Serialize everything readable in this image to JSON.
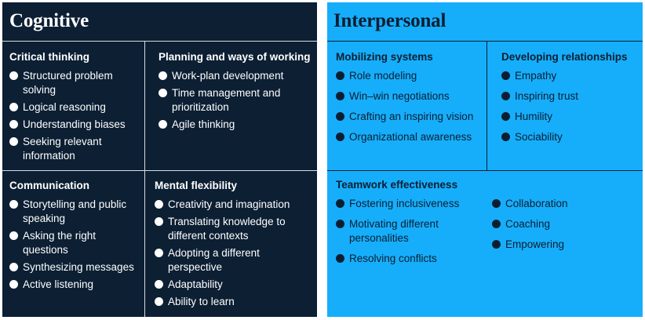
{
  "cognitive": {
    "title": "Cognitive",
    "critical_thinking": {
      "heading": "Critical thinking",
      "items": [
        "Structured problem solving",
        "Logical reasoning",
        "Understanding biases",
        "Seeking relevant information"
      ]
    },
    "planning": {
      "heading": "Planning and ways of working",
      "items": [
        "Work-plan development",
        "Time management and prioritization",
        "Agile thinking"
      ]
    },
    "communication": {
      "heading": "Communication",
      "items": [
        "Storytelling and public speaking",
        "Asking the right questions",
        "Synthesizing messages",
        "Active listening"
      ]
    },
    "mental_flexibility": {
      "heading": "Mental flexibility",
      "items": [
        "Creativity and imagination",
        "Translating knowledge to different contexts",
        "Adopting a different perspective",
        "Adaptability",
        "Ability to learn"
      ]
    }
  },
  "interpersonal": {
    "title": "Interpersonal",
    "mobilizing": {
      "heading": "Mobilizing systems",
      "items": [
        "Role modeling",
        "Win–win negotiations",
        "Crafting an inspiring vision",
        "Organizational awareness"
      ]
    },
    "relationships": {
      "heading": "Developing relationships",
      "items": [
        "Empathy",
        "Inspiring trust",
        "Humility",
        "Sociability"
      ]
    },
    "teamwork": {
      "heading": "Teamwork effectiveness",
      "items_left": [
        "Fostering inclusiveness",
        "Motivating different personalities",
        "Resolving conflicts"
      ],
      "items_right": [
        "Collaboration",
        "Coaching",
        "Empowering"
      ]
    }
  },
  "colors": {
    "cognitive_bg": "#0c1f33",
    "interpersonal_bg": "#16aefb",
    "dark_text": "#0b1e31",
    "light_text": "#ffffff"
  }
}
